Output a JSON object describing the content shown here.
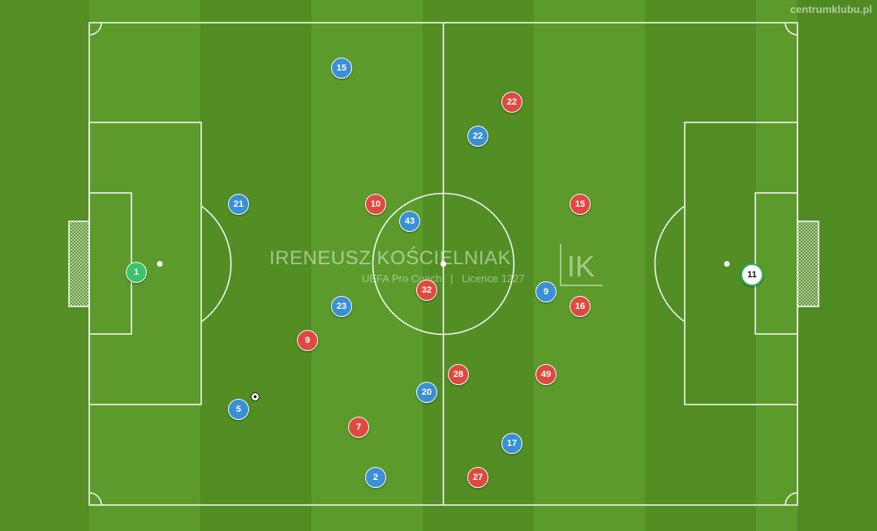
{
  "site_label": "centrumklubu.pl",
  "watermark": {
    "name": "IRENEUSZ KOŚCIELNIAK",
    "subtitle": "UEFA Pro Coach   |   Licence 1227",
    "logo_letters": "IK"
  },
  "colors": {
    "grass_light": "#5f9e2c",
    "grass_dark": "#4f8b22",
    "lines": "#ffffff",
    "team_blue": "#3a90d4",
    "team_red": "#de4a3f",
    "goalkeeper_left": "#3cc26a",
    "goalkeeper_right": "#ffffff"
  },
  "players": [
    {
      "team": "goalkeeper-left",
      "number": "1"
    },
    {
      "team": "goalkeeper-right",
      "number": "11"
    },
    {
      "team": "blue",
      "number": "15"
    },
    {
      "team": "blue",
      "number": "22"
    },
    {
      "team": "blue",
      "number": "21"
    },
    {
      "team": "blue",
      "number": "43"
    },
    {
      "team": "blue",
      "number": "9"
    },
    {
      "team": "blue",
      "number": "23"
    },
    {
      "team": "blue",
      "number": "20"
    },
    {
      "team": "blue",
      "number": "5"
    },
    {
      "team": "blue",
      "number": "17"
    },
    {
      "team": "blue",
      "number": "2"
    },
    {
      "team": "red",
      "number": "22"
    },
    {
      "team": "red",
      "number": "10"
    },
    {
      "team": "red",
      "number": "15"
    },
    {
      "team": "red",
      "number": "32"
    },
    {
      "team": "red",
      "number": "16"
    },
    {
      "team": "red",
      "number": "9"
    },
    {
      "team": "red",
      "number": "28"
    },
    {
      "team": "red",
      "number": "49"
    },
    {
      "team": "red",
      "number": "7"
    },
    {
      "team": "red",
      "number": "27"
    }
  ],
  "ball": {
    "icon": "football-icon"
  }
}
